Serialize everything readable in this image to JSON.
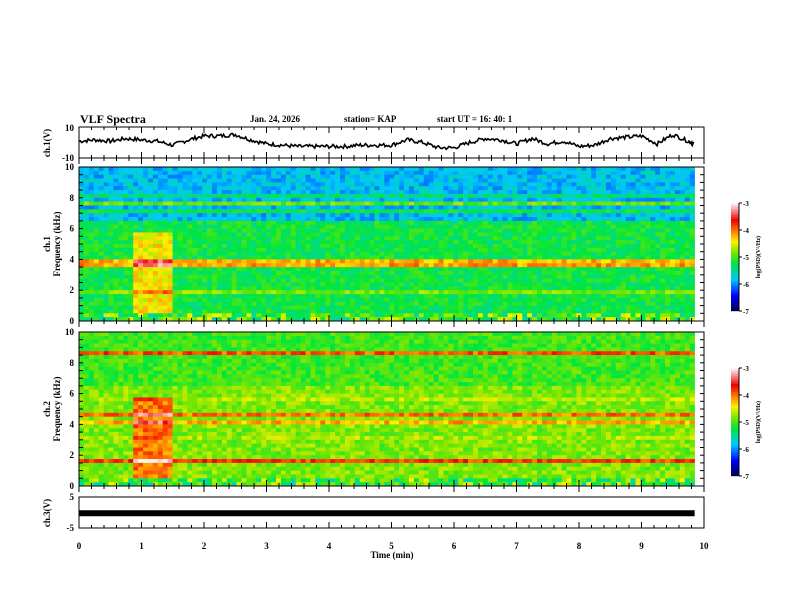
{
  "header": {
    "title": "VLF Spectra",
    "date": "Jan. 24, 2026",
    "station": "station= KAP",
    "start": "start  UT =   16: 40: 1"
  },
  "chart_data": [
    {
      "type": "line",
      "name": "ch1-waveform",
      "ylabel": "ch.1(V)",
      "ylim": [
        -10,
        10
      ],
      "yticks": [
        "10",
        "-10"
      ],
      "xlim": [
        0,
        10
      ],
      "x": [
        0,
        0.25,
        0.5,
        0.75,
        1.0,
        1.25,
        1.5,
        1.75,
        2.0,
        2.25,
        2.5,
        2.75,
        3.0,
        3.25,
        3.5,
        3.75,
        4.0,
        4.25,
        4.5,
        4.75,
        5.0,
        5.25,
        5.5,
        5.75,
        6.0,
        6.25,
        6.5,
        6.75,
        7.0,
        7.25,
        7.5,
        7.75,
        8.0,
        8.25,
        8.5,
        8.75,
        9.0,
        9.25,
        9.5,
        9.75,
        9.85
      ],
      "values": [
        1,
        2,
        1,
        3,
        2,
        1,
        -2,
        2,
        5,
        5,
        6,
        2,
        -1,
        -2,
        -3,
        -3,
        -3,
        -3,
        -2,
        -2,
        -2,
        2,
        0,
        -4,
        -4,
        0,
        3,
        2,
        -1,
        3,
        -1,
        1,
        -3,
        -2,
        3,
        4,
        5,
        -1,
        6,
        1,
        -1
      ]
    },
    {
      "type": "heatmap",
      "name": "ch1-spectrogram",
      "ylabel_top": "ch.1",
      "ylabel": "Frequency  (kHz)",
      "ylim": [
        0,
        10
      ],
      "yticks": [
        "0",
        "2",
        "4",
        "6",
        "8",
        "10"
      ],
      "xlim": [
        0,
        10
      ],
      "colorbar": {
        "label": "log(PSD)(V²/Hz)",
        "range": [
          -7,
          -3
        ],
        "ticks": [
          "-3",
          "-4",
          "-5",
          "-6",
          "-7"
        ]
      }
    },
    {
      "type": "heatmap",
      "name": "ch2-spectrogram",
      "ylabel_top": "ch.2",
      "ylabel": "Frequency  (kHz)",
      "ylim": [
        0,
        10
      ],
      "yticks": [
        "0",
        "2",
        "4",
        "6",
        "8",
        "10"
      ],
      "xlim": [
        0,
        10
      ],
      "colorbar": {
        "label": "log(PSD)(V²/Hz)",
        "range": [
          -7,
          -3
        ],
        "ticks": [
          "-3",
          "-4",
          "-5",
          "-6",
          "-7"
        ]
      }
    },
    {
      "type": "line",
      "name": "ch3-waveform",
      "ylabel": "ch.3(V)",
      "ylim": [
        -5,
        5
      ],
      "yticks": [
        "5",
        "-5"
      ],
      "xlim": [
        0,
        10
      ],
      "x": [
        0,
        9.85
      ],
      "values": [
        -1.2,
        -1.2
      ],
      "xlabel": "Time  (min)",
      "xticks": [
        "0",
        "1",
        "2",
        "3",
        "4",
        "5",
        "6",
        "7",
        "8",
        "9",
        "10"
      ]
    }
  ],
  "colors": {
    "axis": "#000000",
    "trace": "#000000"
  }
}
